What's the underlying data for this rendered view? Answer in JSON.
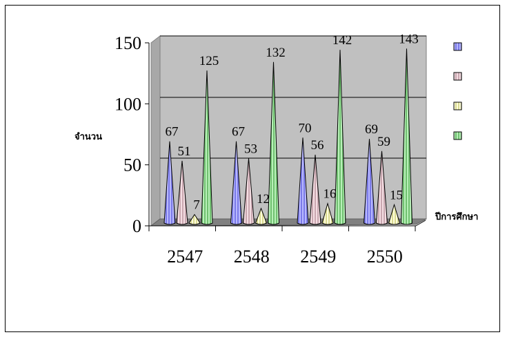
{
  "chart_data": {
    "type": "bar",
    "shape": "cone-3d",
    "title": "",
    "ylabel": "จำนวน",
    "xlabel": "ปีการศึกษา",
    "ylim": [
      0,
      150
    ],
    "yticks": [
      0,
      50,
      100,
      150
    ],
    "grid": true,
    "legend": "right",
    "categories": [
      "2547",
      "2548",
      "2549",
      "2550"
    ],
    "series": [
      {
        "values": [
          67,
          67,
          70,
          69
        ],
        "color": "#9999ff"
      },
      {
        "values": [
          51,
          53,
          56,
          59
        ],
        "color": "#e8c8d0"
      },
      {
        "values": [
          7,
          12,
          16,
          15
        ],
        "color": "#ffffcc"
      },
      {
        "values": [
          125,
          132,
          142,
          143
        ],
        "color": "#99dd99"
      }
    ]
  },
  "colors": {
    "wall": "#c0c0c0",
    "floor": "#808080"
  }
}
